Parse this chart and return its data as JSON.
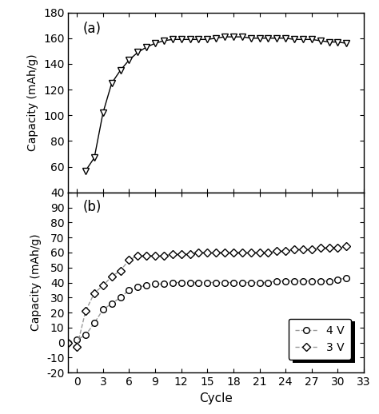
{
  "panel_a_label": "(a)",
  "panel_b_label": "(b)",
  "xlabel": "Cycle",
  "ylabel_a": "Capacity (mAh/g)",
  "ylabel_b": "Capacity (mAh/g)",
  "ylim_a": [
    40,
    180
  ],
  "ylim_b": [
    -20,
    100
  ],
  "xlim": [
    -1,
    33
  ],
  "xticks": [
    0,
    3,
    6,
    9,
    12,
    15,
    18,
    21,
    24,
    27,
    30,
    33
  ],
  "yticks_a": [
    40,
    60,
    80,
    100,
    120,
    140,
    160,
    180
  ],
  "yticks_b": [
    -20,
    -10,
    0,
    10,
    20,
    30,
    40,
    50,
    60,
    70,
    80,
    90,
    100
  ],
  "ytick_labels_b": [
    "-20",
    "-10",
    "0",
    "10",
    "20",
    "30",
    "40",
    "50",
    "60",
    "70",
    "80",
    "90",
    ""
  ],
  "legend_labels": [
    "4 V",
    "3 V"
  ],
  "line_color_a": "#000000",
  "line_color_b": "#999999",
  "bg_color": "#ffffff",
  "panel_a_cycles": [
    1,
    2,
    3,
    4,
    5,
    6,
    7,
    8,
    9,
    10,
    11,
    12,
    13,
    14,
    15,
    16,
    17,
    18,
    19,
    20,
    21,
    22,
    23,
    24,
    25,
    26,
    27,
    28,
    29,
    30,
    31
  ],
  "panel_a_values": [
    57,
    67,
    102,
    125,
    135,
    143,
    149,
    153,
    156,
    158,
    159,
    159,
    159,
    159,
    159,
    160,
    161,
    161,
    161,
    160,
    160,
    160,
    160,
    160,
    159,
    159,
    159,
    158,
    157,
    157,
    156
  ],
  "panel_b_4v_cycles": [
    -1,
    0,
    1,
    2,
    3,
    4,
    5,
    6,
    7,
    8,
    9,
    10,
    11,
    12,
    13,
    14,
    15,
    16,
    17,
    18,
    19,
    20,
    21,
    22,
    23,
    24,
    25,
    26,
    27,
    28,
    29,
    30,
    31
  ],
  "panel_b_4v_values": [
    0,
    2,
    5,
    13,
    22,
    26,
    30,
    35,
    37,
    38,
    39,
    39,
    40,
    40,
    40,
    40,
    40,
    40,
    40,
    40,
    40,
    40,
    40,
    40,
    41,
    41,
    41,
    41,
    41,
    41,
    41,
    42,
    43
  ],
  "panel_b_3v_cycles": [
    -1,
    0,
    1,
    2,
    3,
    4,
    5,
    6,
    7,
    8,
    9,
    10,
    11,
    12,
    13,
    14,
    15,
    16,
    17,
    18,
    19,
    20,
    21,
    22,
    23,
    24,
    25,
    26,
    27,
    28,
    29,
    30,
    31
  ],
  "panel_b_3v_values": [
    0,
    -3,
    21,
    33,
    38,
    44,
    48,
    55,
    58,
    58,
    58,
    58,
    59,
    59,
    59,
    60,
    60,
    60,
    60,
    60,
    60,
    60,
    60,
    60,
    61,
    61,
    62,
    62,
    62,
    63,
    63,
    63,
    64
  ]
}
